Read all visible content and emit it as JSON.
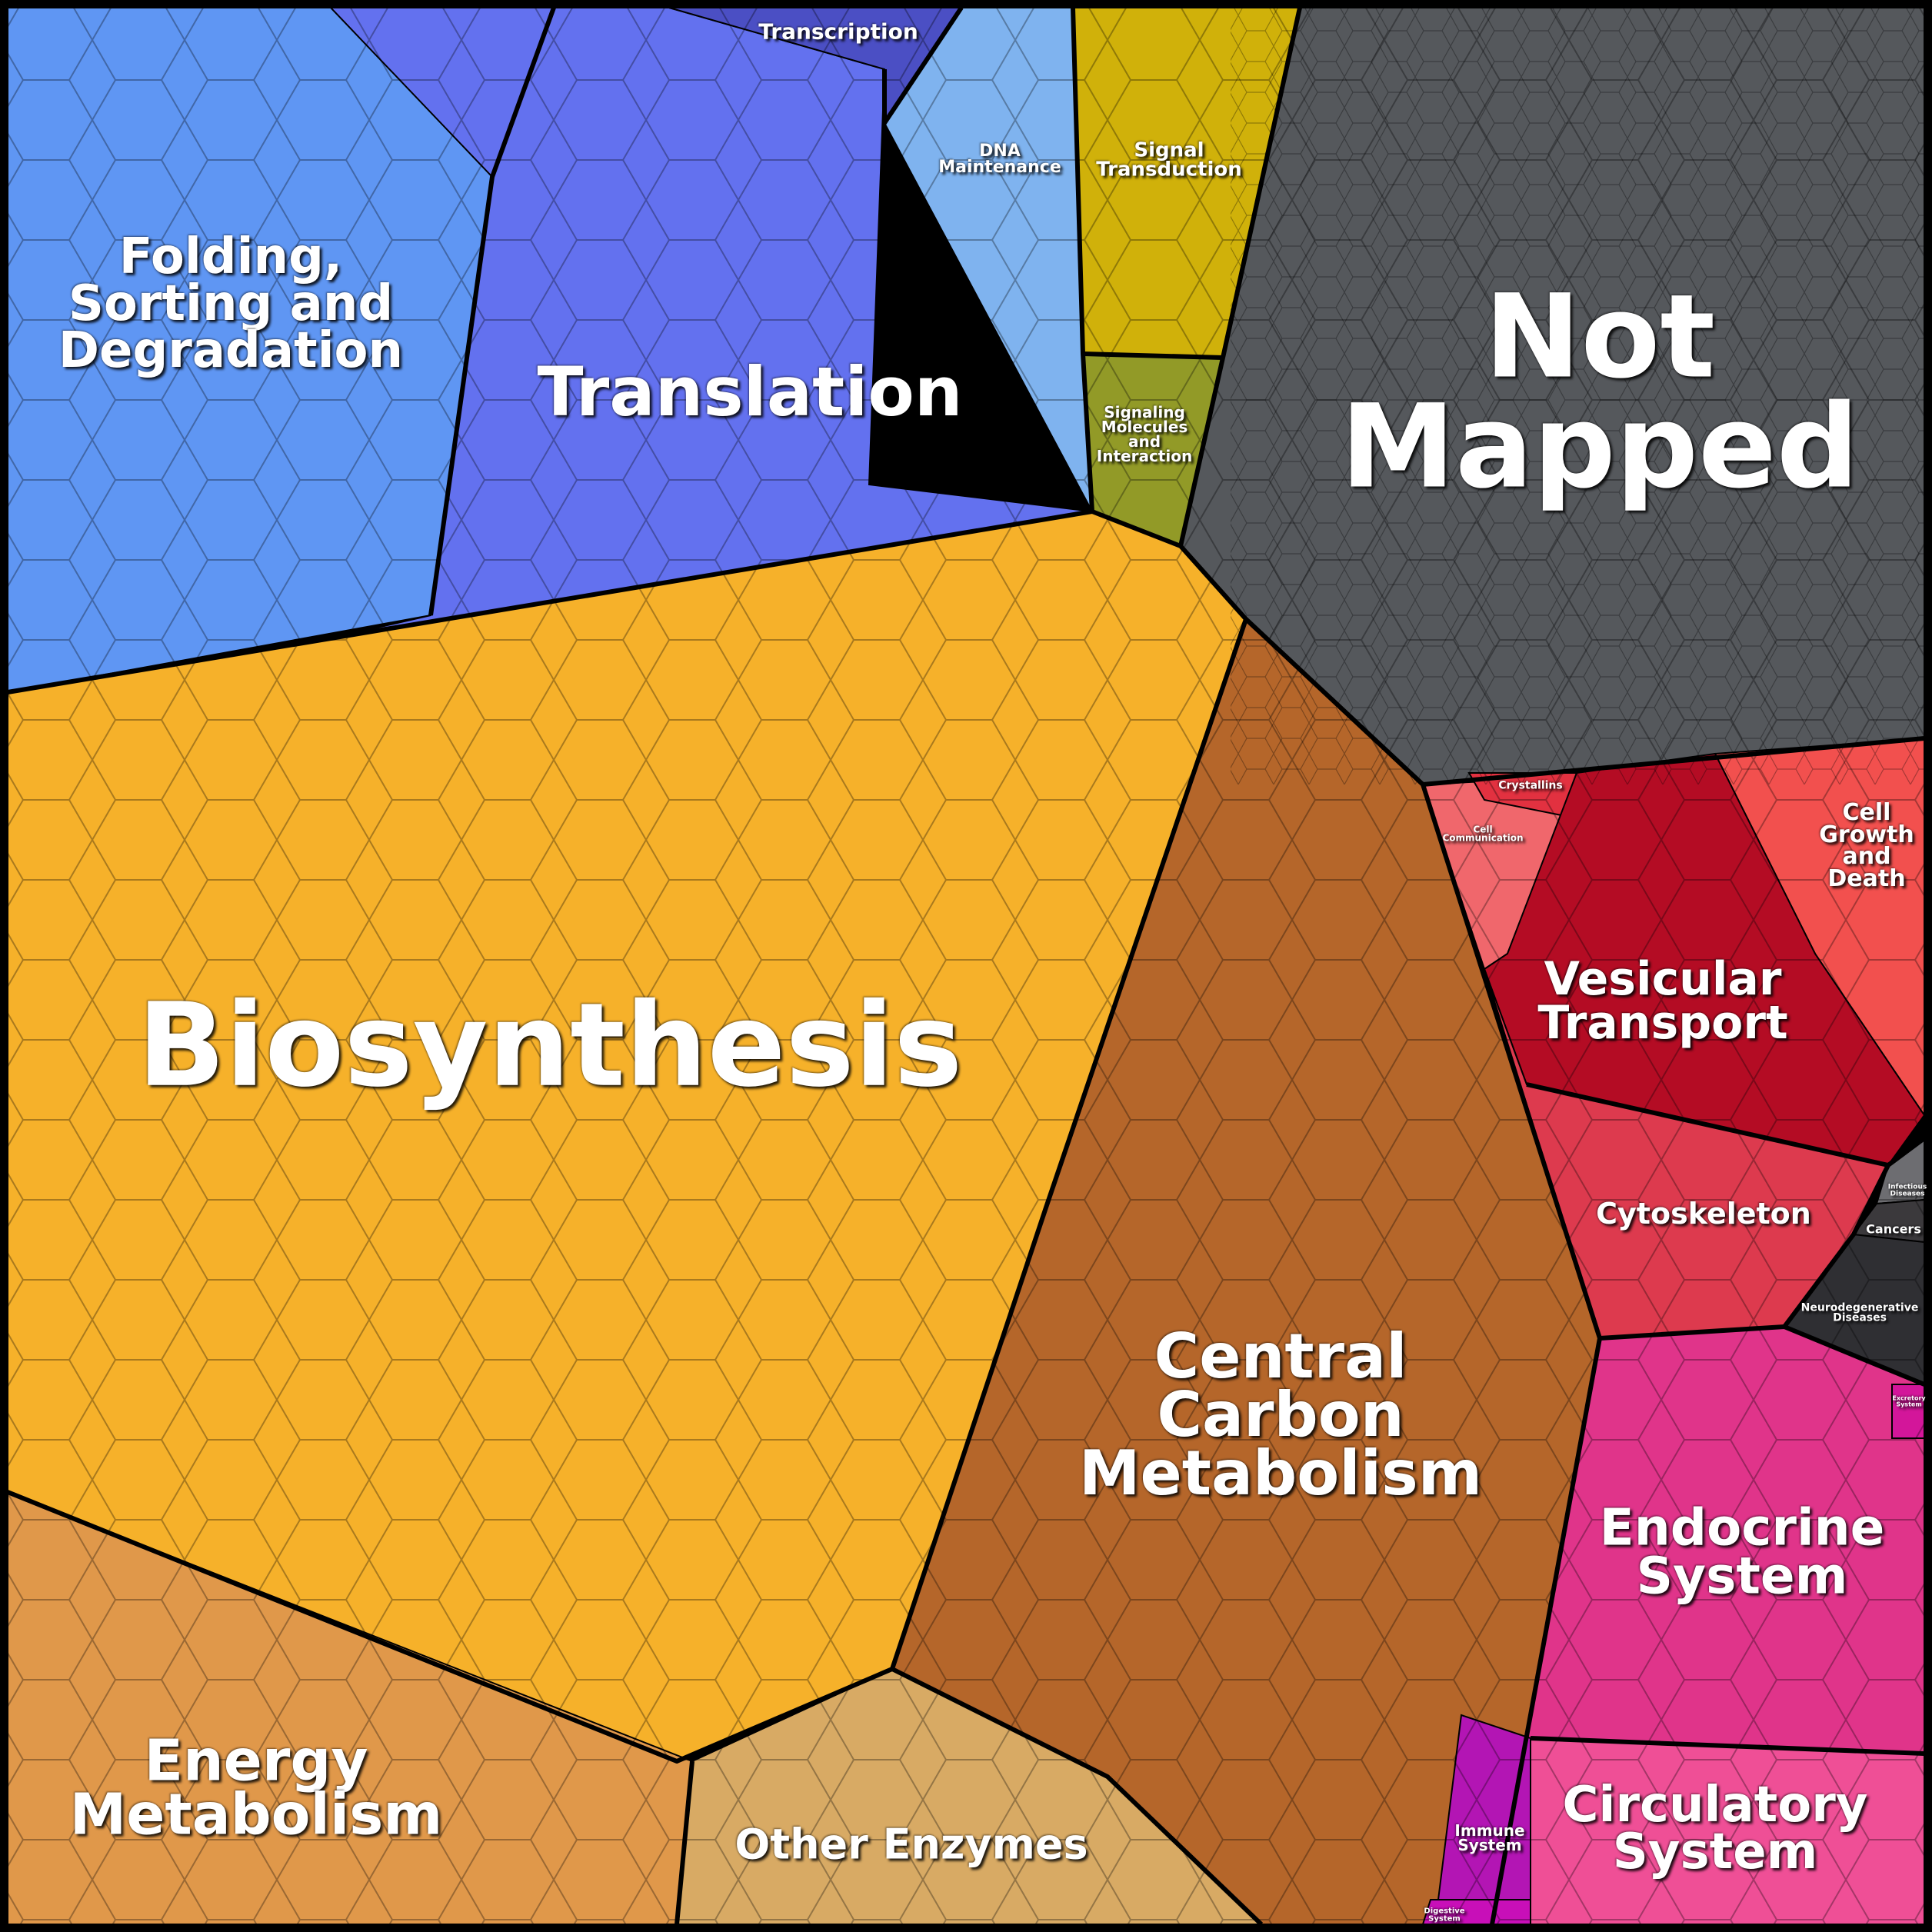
{
  "title": "",
  "colors": {
    "frame": "#000000",
    "label_text": "#ffffff"
  },
  "categories": [
    {
      "key": "folding",
      "label": "Folding,\nSorting and\nDegradation",
      "color": "#5f96f3"
    },
    {
      "key": "translation",
      "label": "Translation",
      "color": "#6371ef"
    },
    {
      "key": "transcription",
      "label": "Transcription",
      "color": "#4b4fc4"
    },
    {
      "key": "dna_maintenance",
      "label": "DNA\nMaintenance",
      "color": "#7fb3ef"
    },
    {
      "key": "signal_transduction",
      "label": "Signal\nTransduction",
      "color": "#d0b10a"
    },
    {
      "key": "signaling_molecules",
      "label": "Signaling\nMolecules\nand\nInteraction",
      "color": "#929a27"
    },
    {
      "key": "not_mapped",
      "label": "Not\nMapped",
      "color": "#55585c"
    },
    {
      "key": "biosynthesis",
      "label": "Biosynthesis",
      "color": "#f6b12a"
    },
    {
      "key": "central_carbon",
      "label": "Central\nCarbon\nMetabolism",
      "color": "#b5662a"
    },
    {
      "key": "energy_metabolism",
      "label": "Energy\nMetabolism",
      "color": "#e0984a"
    },
    {
      "key": "other_enzymes",
      "label": "Other Enzymes",
      "color": "#d8aa64"
    },
    {
      "key": "crystallins",
      "label": "Crystallins",
      "color": "#e23140"
    },
    {
      "key": "cell_communication",
      "label": "Cell\nCommunication",
      "color": "#f0676c"
    },
    {
      "key": "cell_growth",
      "label": "Cell\nGrowth\nand\nDeath",
      "color": "#f2504e"
    },
    {
      "key": "vesicular_transport",
      "label": "Vesicular\nTransport",
      "color": "#b40c24"
    },
    {
      "key": "cytoskeleton",
      "label": "Cytoskeleton",
      "color": "#dd3a4e"
    },
    {
      "key": "infectious",
      "label": "Infectious\nDiseases",
      "color": "#6d6d71"
    },
    {
      "key": "cancers",
      "label": "Cancers",
      "color": "#3b393c"
    },
    {
      "key": "neurodegenerative",
      "label": "Neurodegenerative\nDiseases",
      "color": "#2f2f33"
    },
    {
      "key": "endocrine",
      "label": "Endocrine\nSystem",
      "color": "#e0348a"
    },
    {
      "key": "circulatory",
      "label": "Circulatory\nSystem",
      "color": "#ef4f96"
    },
    {
      "key": "immune",
      "label": "Immune\nSystem",
      "color": "#b315b4"
    },
    {
      "key": "digestive",
      "label": "Digestive\nSystem",
      "color": "#c80fb8"
    },
    {
      "key": "excretory",
      "label": "Excretory\nSystem",
      "color": "#d3169a"
    }
  ]
}
